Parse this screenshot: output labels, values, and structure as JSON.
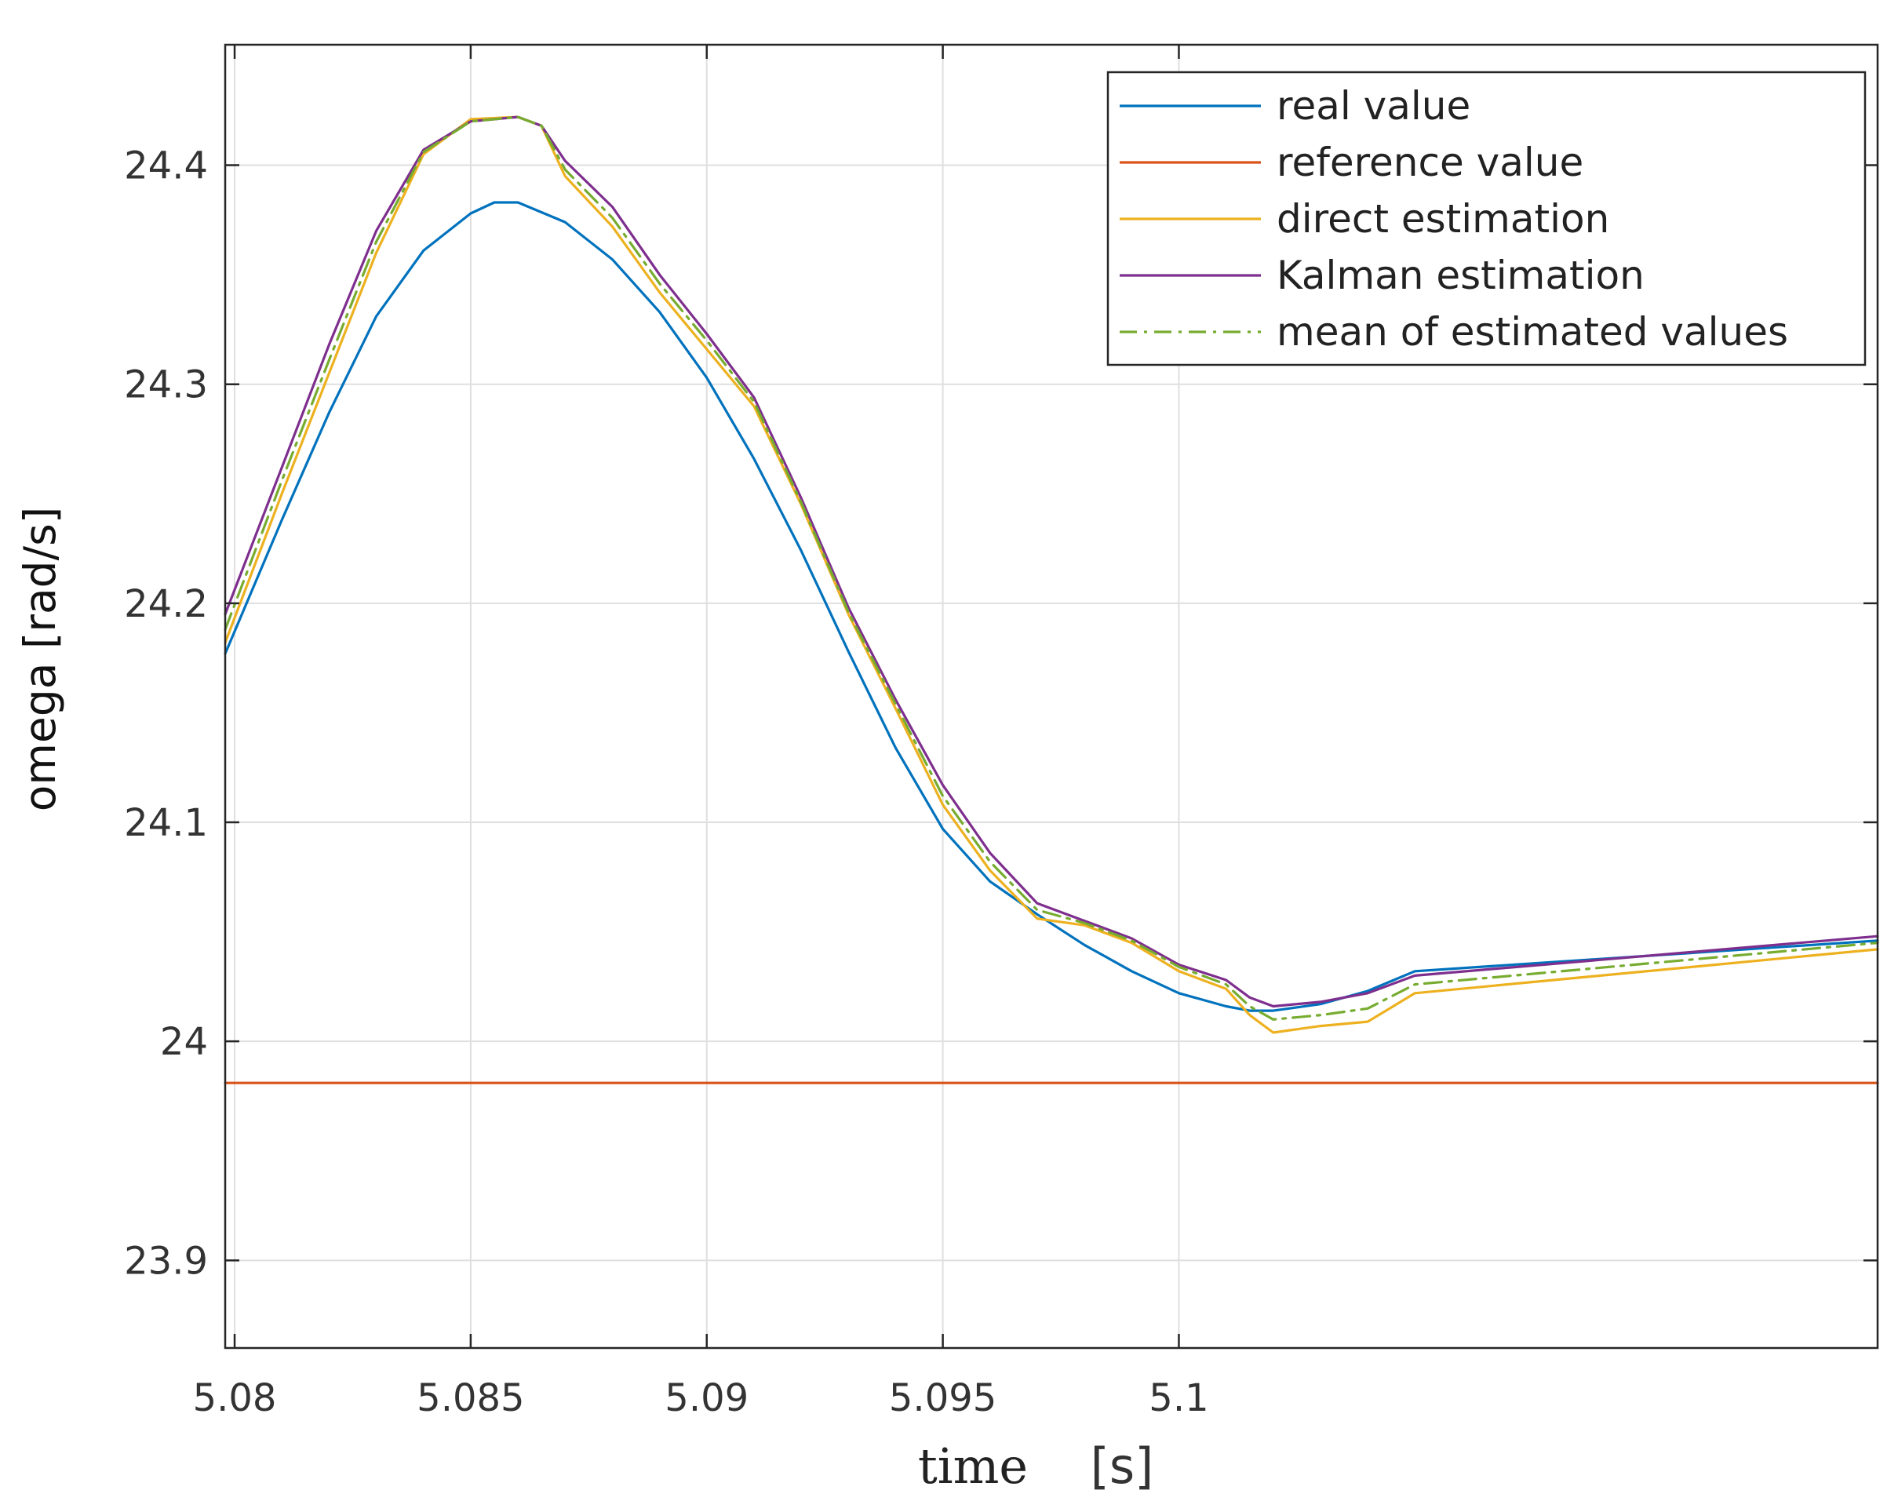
{
  "chart_data": {
    "type": "line",
    "title": "",
    "xlabel": "time",
    "xunit": "[s]",
    "ylabel": "omega [rad/s]",
    "xlim": [
      5.0798,
      5.1148
    ],
    "ylim": [
      23.86,
      24.455
    ],
    "xticks": [
      5.08,
      5.085,
      5.09,
      5.095,
      5.1
    ],
    "xtick_labels": [
      "5.08",
      "5.085",
      "5.09",
      "5.095",
      "5.1"
    ],
    "yticks": [
      23.9,
      24.0,
      24.1,
      24.2,
      24.3,
      24.4
    ],
    "ytick_labels": [
      "23.9",
      "24",
      "24.1",
      "24.2",
      "24.3",
      "24.4"
    ],
    "grid": true,
    "legend_position": "top-right",
    "legend": [
      "real value",
      "reference value",
      "direct estimation",
      "Kalman estimation",
      "mean of estimated values"
    ],
    "series": [
      {
        "name": "real value",
        "color": "#0072BD",
        "style": "solid",
        "x": [
          5.0798,
          5.081,
          5.082,
          5.083,
          5.084,
          5.085,
          5.0855,
          5.086,
          5.087,
          5.088,
          5.089,
          5.09,
          5.091,
          5.092,
          5.093,
          5.094,
          5.095,
          5.096,
          5.097,
          5.098,
          5.099,
          5.1,
          5.101,
          5.1015,
          5.102,
          5.103,
          5.104,
          5.105,
          5.1148
        ],
        "values": [
          24.177,
          24.238,
          24.287,
          24.331,
          24.361,
          24.378,
          24.383,
          24.383,
          24.374,
          24.357,
          24.333,
          24.303,
          24.266,
          24.224,
          24.178,
          24.134,
          24.097,
          24.073,
          24.058,
          24.044,
          24.032,
          24.022,
          24.016,
          24.014,
          24.014,
          24.017,
          24.023,
          24.032,
          24.046
        ]
      },
      {
        "name": "reference value",
        "color": "#D95319",
        "style": "solid",
        "x": [
          5.0798,
          5.1148
        ],
        "values": [
          23.981,
          23.981
        ]
      },
      {
        "name": "direct estimation",
        "color": "#EDB120",
        "style": "solid",
        "x": [
          5.0798,
          5.081,
          5.082,
          5.083,
          5.084,
          5.085,
          5.086,
          5.0865,
          5.087,
          5.088,
          5.089,
          5.09,
          5.091,
          5.092,
          5.093,
          5.094,
          5.095,
          5.096,
          5.097,
          5.098,
          5.099,
          5.1,
          5.101,
          5.1015,
          5.102,
          5.103,
          5.104,
          5.105,
          5.1148
        ],
        "values": [
          24.182,
          24.25,
          24.305,
          24.36,
          24.405,
          24.421,
          24.422,
          24.418,
          24.395,
          24.372,
          24.342,
          24.316,
          24.29,
          24.245,
          24.195,
          24.152,
          24.108,
          24.078,
          24.056,
          24.053,
          24.045,
          24.032,
          24.024,
          24.012,
          24.004,
          24.007,
          24.009,
          24.022,
          24.042
        ]
      },
      {
        "name": "Kalman estimation",
        "color": "#7E2F8E",
        "style": "solid",
        "x": [
          5.0798,
          5.081,
          5.082,
          5.083,
          5.084,
          5.085,
          5.086,
          5.0865,
          5.087,
          5.088,
          5.089,
          5.09,
          5.091,
          5.092,
          5.093,
          5.094,
          5.095,
          5.096,
          5.097,
          5.098,
          5.099,
          5.1,
          5.101,
          5.1015,
          5.102,
          5.103,
          5.104,
          5.105,
          5.1148
        ],
        "values": [
          24.195,
          24.262,
          24.318,
          24.37,
          24.407,
          24.42,
          24.422,
          24.418,
          24.402,
          24.381,
          24.35,
          24.323,
          24.294,
          24.248,
          24.198,
          24.156,
          24.117,
          24.086,
          24.063,
          24.055,
          24.047,
          24.035,
          24.028,
          24.02,
          24.016,
          24.018,
          24.022,
          24.03,
          24.048
        ]
      },
      {
        "name": "mean of estimated values",
        "color": "#77AC30",
        "style": "dashdot",
        "x": [
          5.0798,
          5.081,
          5.082,
          5.083,
          5.084,
          5.085,
          5.086,
          5.0865,
          5.087,
          5.088,
          5.089,
          5.09,
          5.091,
          5.092,
          5.093,
          5.094,
          5.095,
          5.096,
          5.097,
          5.098,
          5.099,
          5.1,
          5.101,
          5.1015,
          5.102,
          5.103,
          5.104,
          5.105,
          5.1148
        ],
        "values": [
          24.188,
          24.256,
          24.311,
          24.365,
          24.406,
          24.42,
          24.422,
          24.418,
          24.398,
          24.376,
          24.346,
          24.32,
          24.292,
          24.246,
          24.196,
          24.154,
          24.112,
          24.082,
          24.06,
          24.054,
          24.046,
          24.034,
          24.026,
          24.016,
          24.01,
          24.012,
          24.015,
          24.026,
          24.045
        ]
      }
    ]
  }
}
